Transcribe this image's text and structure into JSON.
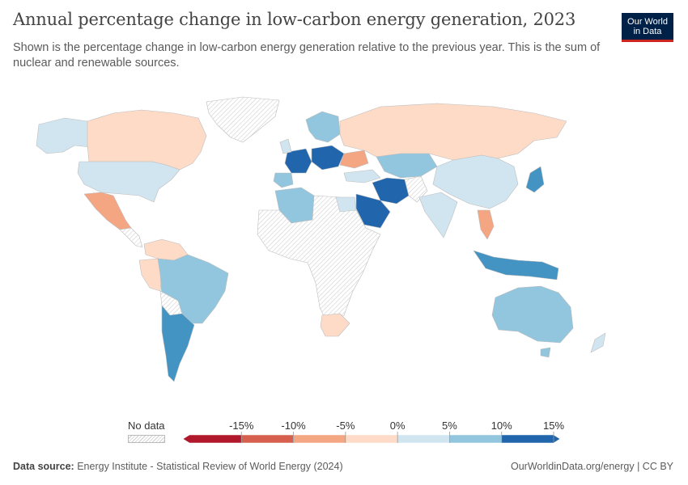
{
  "header": {
    "title": "Annual percentage change in low-carbon energy generation, 2023",
    "subtitle": "Shown is the percentage change in low-carbon energy generation relative to the previous year. This is the sum of nuclear and renewable sources."
  },
  "logo": {
    "line1": "Our World",
    "line2": "in Data"
  },
  "legend": {
    "no_data_label": "No data",
    "ticks": [
      "-15%",
      "-10%",
      "-5%",
      "0%",
      "5%",
      "10%",
      "15%"
    ],
    "bins": [
      {
        "color": "#b2182b"
      },
      {
        "color": "#d6604d"
      },
      {
        "color": "#f4a582"
      },
      {
        "color": "#fddbc7"
      },
      {
        "color": "#d1e5f0"
      },
      {
        "color": "#92c5de"
      },
      {
        "color": "#4393c3"
      },
      {
        "color": "#2166ac"
      }
    ]
  },
  "colors": {
    "no_data": "#f2f2f2",
    "border": "#bdbdbd"
  },
  "map_data": {
    "year": "2023",
    "unit": "%",
    "regions": [
      {
        "id": "canada",
        "bin": 3
      },
      {
        "id": "usa",
        "bin": 4
      },
      {
        "id": "mexico",
        "bin": 2
      },
      {
        "id": "brazil",
        "bin": 5
      },
      {
        "id": "argentina",
        "bin": 6
      },
      {
        "id": "peru",
        "bin": 3
      },
      {
        "id": "russia",
        "bin": 3
      },
      {
        "id": "china",
        "bin": 4
      },
      {
        "id": "india",
        "bin": 4
      },
      {
        "id": "australia",
        "bin": 5
      },
      {
        "id": "south-africa",
        "bin": 3
      },
      {
        "id": "algeria",
        "bin": 5
      },
      {
        "id": "saudi-arabia",
        "bin": 7
      },
      {
        "id": "iran",
        "bin": 7
      },
      {
        "id": "kazakhstan",
        "bin": 5
      },
      {
        "id": "indonesia",
        "bin": 6
      },
      {
        "id": "japan",
        "bin": 6
      },
      {
        "id": "vietnam",
        "bin": 2
      },
      {
        "id": "france",
        "bin": 7
      },
      {
        "id": "spain",
        "bin": 5
      },
      {
        "id": "ukraine",
        "bin": 2
      },
      {
        "id": "turkey",
        "bin": 4
      }
    ]
  },
  "footer": {
    "source_label": "Data source:",
    "source_text": "Energy Institute - Statistical Review of World Energy (2024)",
    "url_license": "OurWorldinData.org/energy | CC BY"
  }
}
